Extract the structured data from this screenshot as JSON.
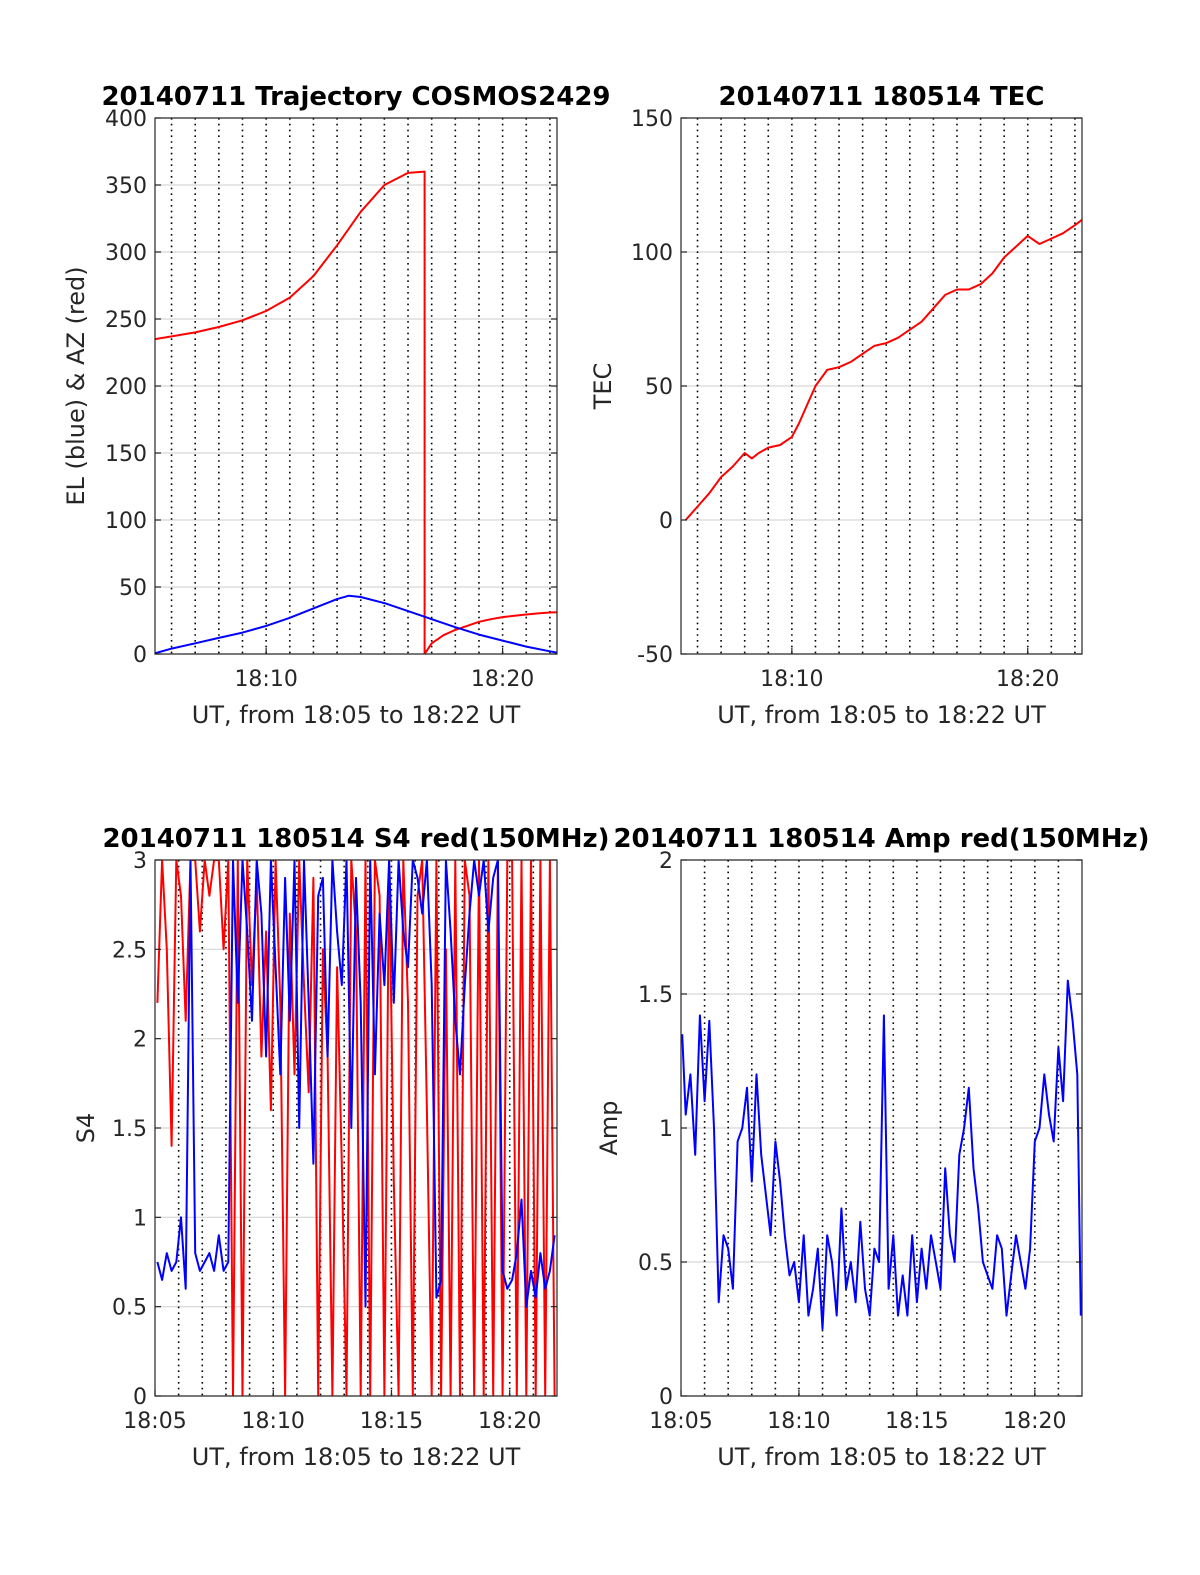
{
  "colors": {
    "red": "#ff0000",
    "blue": "#0000ff"
  },
  "chart_data": [
    {
      "type": "line",
      "title": "20140711 Trajectory COSMOS2429",
      "xlabel": "UT, from 18:05 to 18:22 UT",
      "ylabel": "EL (blue) & AZ (red)",
      "xlim_min": [
        5.3,
        22.3
      ],
      "ylim": [
        0,
        400
      ],
      "yticks": [
        0,
        50,
        100,
        150,
        200,
        250,
        300,
        350,
        400
      ],
      "ytick_labels": [
        "0",
        "50",
        "100",
        "150",
        "200",
        "250",
        "300",
        "350",
        "400"
      ],
      "xticks_min": [
        10,
        20
      ],
      "xtick_labels": [
        "18:10",
        "18:20"
      ],
      "xgrid_min": [
        6,
        7,
        8,
        9,
        10,
        11,
        12,
        13,
        14,
        15,
        16,
        17,
        18,
        19,
        20,
        21,
        22
      ],
      "grid": true,
      "series": [
        {
          "color": "red",
          "x_min": [
            5.3,
            6,
            7,
            8,
            9,
            10,
            11,
            12,
            13,
            14,
            15,
            16,
            16.7,
            16.7,
            17,
            17.5,
            18,
            18.5,
            19,
            19.5,
            20,
            20.5,
            21,
            21.5,
            22,
            22.3
          ],
          "values": [
            235,
            237,
            240,
            244,
            249,
            256,
            266,
            282,
            305,
            330,
            350,
            359,
            360,
            0,
            8,
            14,
            18,
            21,
            24,
            26,
            27.5,
            28.5,
            29.5,
            30.3,
            31,
            31.2
          ]
        },
        {
          "color": "blue",
          "x_min": [
            5.3,
            6,
            7,
            8,
            9,
            10,
            11,
            12,
            13,
            13.5,
            14,
            15,
            16,
            17,
            18,
            19,
            20,
            21,
            22,
            22.3
          ],
          "values": [
            0.5,
            4,
            8,
            12,
            16,
            21,
            27,
            34,
            41,
            43.5,
            42.5,
            38,
            32,
            26,
            20,
            14.5,
            10,
            5.5,
            2,
            1
          ]
        }
      ]
    },
    {
      "type": "line",
      "title": "20140711 180514 TEC",
      "xlabel": "UT, from 18:05 to 18:22 UT",
      "ylabel": "TEC",
      "xlim_min": [
        5.3,
        22.3
      ],
      "ylim": [
        -50,
        150
      ],
      "yticks": [
        -50,
        0,
        50,
        100,
        150
      ],
      "ytick_labels": [
        "-50",
        "0",
        "50",
        "100",
        "150"
      ],
      "xticks_min": [
        10,
        20
      ],
      "xtick_labels": [
        "18:10",
        "18:20"
      ],
      "xgrid_min": [
        6,
        7,
        8,
        9,
        10,
        11,
        12,
        13,
        14,
        15,
        16,
        17,
        18,
        19,
        20,
        21,
        22
      ],
      "grid": true,
      "series": [
        {
          "color": "red",
          "x_min": [
            5.5,
            6,
            6.5,
            7,
            7.5,
            8,
            8.3,
            8.6,
            9,
            9.5,
            10,
            10.3,
            10.6,
            11,
            11.5,
            12,
            12.5,
            13,
            13.5,
            14,
            14.5,
            15,
            15.5,
            16,
            16.5,
            17,
            17.5,
            18,
            18.5,
            19,
            19.5,
            20,
            20.5,
            21,
            21.5,
            22,
            22.3
          ],
          "values": [
            0,
            5,
            10,
            16,
            20,
            25,
            23,
            25,
            27,
            28,
            31,
            36,
            42,
            50,
            56,
            57,
            59,
            62,
            65,
            66,
            68,
            71,
            74,
            79,
            84,
            86,
            86,
            88,
            92,
            98,
            102,
            106,
            103,
            105,
            107,
            110,
            112
          ]
        }
      ]
    },
    {
      "type": "line",
      "title": "20140711 180514 S4 red(150MHz)",
      "xlabel": "UT, from 18:05 to 18:22 UT",
      "ylabel": "S4",
      "xlim_min": [
        5,
        22
      ],
      "ylim": [
        0,
        3
      ],
      "yticks": [
        0,
        0.5,
        1,
        1.5,
        2,
        2.5,
        3
      ],
      "ytick_labels": [
        "0",
        "0.5",
        "1",
        "1.5",
        "2",
        "2.5",
        "3"
      ],
      "xticks_min": [
        5,
        10,
        15,
        20
      ],
      "xtick_labels": [
        "18:05",
        "18:10",
        "18:15",
        "18:20"
      ],
      "xgrid_min": [
        6,
        7,
        8,
        9,
        10,
        11,
        12,
        13,
        14,
        15,
        16,
        17,
        18,
        19,
        20,
        21
      ],
      "grid": true,
      "series": [
        {
          "color": "red",
          "x_min": [
            5.1,
            5.3,
            5.5,
            5.7,
            5.9,
            6.1,
            6.3,
            6.5,
            6.7,
            6.9,
            7.1,
            7.3,
            7.5,
            7.7,
            7.9,
            8.1,
            8.3,
            8.5,
            8.7,
            8.9,
            9.1,
            9.3,
            9.5,
            9.7,
            9.9,
            10.1,
            10.3,
            10.5,
            10.7,
            10.9,
            11.1,
            11.3,
            11.5,
            11.7,
            11.9,
            12.1,
            12.3,
            12.5,
            12.7,
            12.9,
            13.1,
            13.3,
            13.5,
            13.7,
            13.9,
            14.1,
            14.3,
            14.5,
            14.7,
            14.9,
            15.1,
            15.3,
            15.5,
            15.7,
            15.9,
            16.1,
            16.3,
            16.5,
            16.7,
            16.9,
            17.1,
            17.3,
            17.5,
            17.7,
            17.9,
            18.1,
            18.3,
            18.5,
            18.7,
            18.9,
            19.1,
            19.3,
            19.5,
            19.7,
            19.9,
            20.1,
            20.3,
            20.5,
            20.7,
            20.9,
            21.1,
            21.3,
            21.5,
            21.7,
            21.9
          ],
          "values": [
            2.2,
            3,
            2.5,
            1.4,
            3,
            2.8,
            2.1,
            3,
            3,
            2.6,
            3,
            2.8,
            3,
            3,
            2.5,
            3,
            0,
            3,
            0,
            3,
            2.3,
            2.9,
            1.9,
            2.6,
            1.6,
            3,
            2.2,
            0,
            2.7,
            1.8,
            3,
            2.3,
            1.7,
            2.9,
            0,
            2.5,
            1.9,
            0,
            2.4,
            1.3,
            0,
            3,
            2.6,
            0,
            3,
            0,
            3,
            2.8,
            0,
            3,
            1.2,
            0,
            3,
            2.2,
            0,
            2.8,
            3,
            1.6,
            0,
            3,
            0,
            2.5,
            0,
            3,
            0,
            3,
            2.8,
            0,
            3,
            0,
            3,
            0,
            3,
            0,
            3,
            3,
            0,
            3,
            0,
            3,
            0,
            3,
            0,
            3,
            0
          ]
        },
        {
          "color": "blue",
          "x_min": [
            5.1,
            5.3,
            5.5,
            5.7,
            5.9,
            6.1,
            6.3,
            6.5,
            6.7,
            6.9,
            7.1,
            7.3,
            7.5,
            7.7,
            7.9,
            8.1,
            8.3,
            8.5,
            8.7,
            8.9,
            9.1,
            9.3,
            9.5,
            9.7,
            9.9,
            10.1,
            10.3,
            10.5,
            10.7,
            10.9,
            11.1,
            11.3,
            11.5,
            11.7,
            11.9,
            12.1,
            12.3,
            12.5,
            12.7,
            12.9,
            13.1,
            13.3,
            13.5,
            13.7,
            13.9,
            14.1,
            14.3,
            14.5,
            14.7,
            14.9,
            15.1,
            15.3,
            15.5,
            15.7,
            15.9,
            16.1,
            16.3,
            16.5,
            16.7,
            16.9,
            17.1,
            17.3,
            17.5,
            17.7,
            17.9,
            18.1,
            18.3,
            18.5,
            18.7,
            18.9,
            19.1,
            19.3,
            19.5,
            19.7,
            19.9,
            20.1,
            20.3,
            20.5,
            20.7,
            20.9,
            21.1,
            21.3,
            21.5,
            21.7,
            21.9
          ],
          "values": [
            0.75,
            0.65,
            0.8,
            0.7,
            0.75,
            1,
            0.6,
            3,
            0.8,
            0.7,
            0.75,
            0.8,
            0.7,
            0.9,
            0.7,
            0.75,
            3,
            2.2,
            3,
            2.6,
            2.1,
            3,
            2.7,
            1.9,
            3,
            2.4,
            1.8,
            2.9,
            2.1,
            3,
            1.5,
            3,
            2.2,
            1.3,
            2.8,
            2.9,
            1.9,
            3,
            2.6,
            2.3,
            3,
            1.5,
            2.9,
            2.2,
            0.5,
            3,
            1.8,
            2.7,
            2.3,
            3,
            2.2,
            3,
            2.6,
            2.4,
            3,
            2.9,
            2.7,
            3,
            2.3,
            0.55,
            0.65,
            3,
            2.6,
            2.1,
            1.8,
            2.3,
            2.7,
            3,
            2.8,
            3,
            2.6,
            2.9,
            3,
            0.7,
            0.6,
            0.65,
            0.8,
            1.1,
            0.5,
            0.7,
            0.55,
            0.8,
            0.6,
            0.7,
            0.9
          ]
        }
      ]
    },
    {
      "type": "line",
      "title": "20140711 180514 Amp red(150MHz)",
      "xlabel": "UT, from 18:05 to 18:22 UT",
      "ylabel": "Amp",
      "xlim_min": [
        5,
        22
      ],
      "ylim": [
        0,
        2
      ],
      "yticks": [
        0,
        0.5,
        1,
        1.5,
        2
      ],
      "ytick_labels": [
        "0",
        "0.5",
        "1",
        "1.5",
        "2"
      ],
      "xticks_min": [
        5,
        10,
        15,
        20
      ],
      "xtick_labels": [
        "18:05",
        "18:10",
        "18:15",
        "18:20"
      ],
      "xgrid_min": [
        6,
        7,
        8,
        9,
        10,
        11,
        12,
        13,
        14,
        15,
        16,
        17,
        18,
        19,
        20,
        21
      ],
      "grid": true,
      "series": [
        {
          "color": "blue",
          "x_min": [
            5.05,
            5.2,
            5.4,
            5.6,
            5.8,
            6.0,
            6.2,
            6.4,
            6.6,
            6.8,
            7.0,
            7.2,
            7.4,
            7.6,
            7.8,
            8.0,
            8.2,
            8.4,
            8.6,
            8.8,
            9.0,
            9.2,
            9.4,
            9.6,
            9.8,
            10.0,
            10.2,
            10.4,
            10.6,
            10.8,
            11.0,
            11.2,
            11.4,
            11.6,
            11.8,
            12.0,
            12.2,
            12.4,
            12.6,
            12.8,
            13.0,
            13.2,
            13.4,
            13.6,
            13.8,
            14.0,
            14.2,
            14.4,
            14.6,
            14.8,
            15.0,
            15.2,
            15.4,
            15.6,
            15.8,
            16.0,
            16.2,
            16.4,
            16.6,
            16.8,
            17.0,
            17.2,
            17.4,
            17.6,
            17.8,
            18.0,
            18.2,
            18.4,
            18.6,
            18.8,
            19.0,
            19.2,
            19.4,
            19.6,
            19.8,
            20.0,
            20.2,
            20.4,
            20.6,
            20.8,
            21.0,
            21.2,
            21.4,
            21.6,
            21.8,
            21.95
          ],
          "values": [
            1.35,
            1.05,
            1.2,
            0.9,
            1.42,
            1.1,
            1.4,
            1.0,
            0.35,
            0.6,
            0.55,
            0.4,
            0.95,
            1.0,
            1.15,
            0.8,
            1.2,
            0.9,
            0.75,
            0.6,
            0.95,
            0.8,
            0.6,
            0.45,
            0.5,
            0.35,
            0.6,
            0.3,
            0.4,
            0.55,
            0.25,
            0.6,
            0.5,
            0.3,
            0.7,
            0.4,
            0.5,
            0.35,
            0.65,
            0.4,
            0.3,
            0.55,
            0.5,
            1.42,
            0.4,
            0.6,
            0.3,
            0.45,
            0.3,
            0.6,
            0.35,
            0.55,
            0.4,
            0.6,
            0.5,
            0.4,
            0.85,
            0.6,
            0.5,
            0.9,
            1.0,
            1.15,
            0.85,
            0.7,
            0.5,
            0.45,
            0.4,
            0.6,
            0.55,
            0.3,
            0.45,
            0.6,
            0.5,
            0.4,
            0.55,
            0.95,
            1.0,
            1.2,
            1.05,
            0.95,
            1.3,
            1.1,
            1.55,
            1.4,
            1.2,
            0.3
          ]
        }
      ]
    }
  ]
}
